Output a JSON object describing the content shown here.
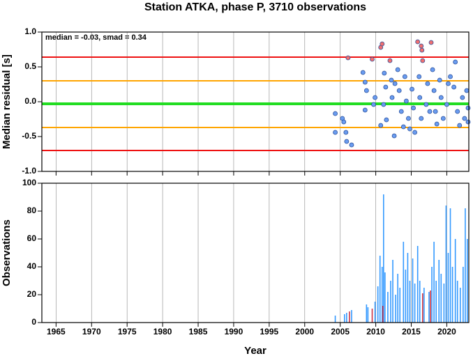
{
  "chart_data": [
    {
      "type": "scatter",
      "title": "Station ATKA, phase P, 3710 observations",
      "y_label": "Median residual [s]",
      "annotation": "median = -0.03, smad = 0.34",
      "xlim": [
        1963,
        2023.1
      ],
      "ylim": [
        -1,
        1
      ],
      "yticks": [
        {
          "value": 1,
          "label": "1.0"
        },
        0.5,
        {
          "value": 0,
          "label": "0.0"
        },
        -0.5,
        {
          "value": -1,
          "label": "-1.0"
        }
      ],
      "grid": true,
      "reference_lines": [
        {
          "value": 0.64,
          "color": "#ee1111"
        },
        {
          "value": 0.3,
          "color": "#ffa500"
        },
        {
          "value": -0.03,
          "color": "#22dd22"
        },
        {
          "value": -0.37,
          "color": "#ffa500"
        },
        {
          "value": -0.7,
          "color": "#ee1111"
        }
      ],
      "series": [
        {
          "color": "#6a9cf0",
          "x": [
            2004.3,
            2004.3,
            2005.3,
            2005.5,
            2005.8,
            2005.9,
            2006.6,
            2008.2,
            2008.5,
            2008.7,
            2008.5,
            2009.7,
            2009.9,
            2010.7,
            2011.2,
            2011.4,
            2011.1,
            2011.5,
            2012.2,
            2012.3,
            2012.6,
            2012.7,
            2013.1,
            2013.3,
            2013.6,
            2013.9,
            2014.1,
            2014.3,
            2014.6,
            2014.8,
            2015.1,
            2015.3,
            2015.5,
            2016.1,
            2016.2,
            2016.4,
            2017.1,
            2017.3,
            2017.6,
            2018.0,
            2018.2,
            2018.4,
            2018.6,
            2019.0,
            2019.2,
            2019.5,
            2020.0,
            2020.2,
            2020.5,
            2021.0,
            2021.2,
            2021.5,
            2021.8,
            2022.2,
            2022.5,
            2022.8,
            2023.0,
            2023.0
          ],
          "values": [
            -0.17,
            -0.44,
            -0.24,
            -0.29,
            -0.44,
            -0.57,
            -0.62,
            0.42,
            0.28,
            0.16,
            -0.12,
            -0.04,
            0.06,
            -0.34,
            0.41,
            0.21,
            -0.04,
            -0.26,
            0.31,
            0.06,
            -0.49,
            0.26,
            0.46,
            0.16,
            -0.14,
            -0.36,
            0.36,
            0.01,
            -0.24,
            -0.39,
            0.18,
            -0.09,
            -0.44,
            0.36,
            0.06,
            -0.24,
            -0.04,
            0.26,
            -0.14,
            0.46,
            0.16,
            -0.14,
            -0.32,
            0.31,
            0.06,
            -0.24,
            -0.04,
            0.26,
            0.36,
            0.21,
            0.57,
            -0.14,
            -0.34,
            0.06,
            -0.24,
            0.16,
            -0.09,
            -0.29
          ]
        },
        {
          "color": "#f07070",
          "x": [
            2006.1,
            2009.5,
            2010.7,
            2010.9,
            2012.0,
            2015.9,
            2016.4,
            2016.5,
            2016.6,
            2017.8
          ],
          "values": [
            0.63,
            0.61,
            0.78,
            0.83,
            0.59,
            0.86,
            0.8,
            0.74,
            0.59,
            0.85
          ]
        }
      ]
    },
    {
      "type": "bar",
      "y_label": "Observations",
      "x_label": "Year",
      "xlim": [
        1963,
        2023.1
      ],
      "ylim": [
        0,
        100
      ],
      "xticks": [
        1965,
        1970,
        1975,
        1980,
        1985,
        1990,
        1995,
        2000,
        2005,
        2010,
        2015,
        2020
      ],
      "yticks": [
        0,
        20,
        40,
        60,
        80,
        100
      ],
      "grid": true,
      "series": [
        {
          "color": "#3399ff",
          "x": [
            2004.3,
            2005.6,
            2005.9,
            2006.6,
            2008.7,
            2008.9,
            2009.9,
            2010.3,
            2010.6,
            2010.9,
            2011.1,
            2011.3,
            2011.7,
            2012.1,
            2012.4,
            2012.8,
            2013.1,
            2013.4,
            2013.9,
            2014.2,
            2014.5,
            2014.8,
            2015.2,
            2015.5,
            2015.9,
            2016.2,
            2016.8,
            2017.5,
            2017.9,
            2018.2,
            2018.5,
            2018.9,
            2019.2,
            2019.6,
            2019.9,
            2020.2,
            2020.5,
            2020.8,
            2021.2,
            2021.5,
            2021.9,
            2022.3,
            2022.6,
            2022.9
          ],
          "values": [
            5,
            6,
            7,
            9,
            13,
            11,
            15,
            26,
            48,
            40,
            92,
            36,
            22,
            30,
            45,
            20,
            35,
            25,
            58,
            38,
            50,
            30,
            46,
            28,
            55,
            30,
            25,
            22,
            40,
            58,
            30,
            45,
            35,
            28,
            84,
            50,
            82,
            40,
            60,
            30,
            25,
            40,
            82,
            60
          ]
        },
        {
          "color": "#cc3344",
          "x": [
            2006.3,
            2009.5,
            2011.0,
            2016.6,
            2017.7
          ],
          "values": [
            8,
            10,
            12,
            21,
            23
          ]
        }
      ]
    }
  ]
}
